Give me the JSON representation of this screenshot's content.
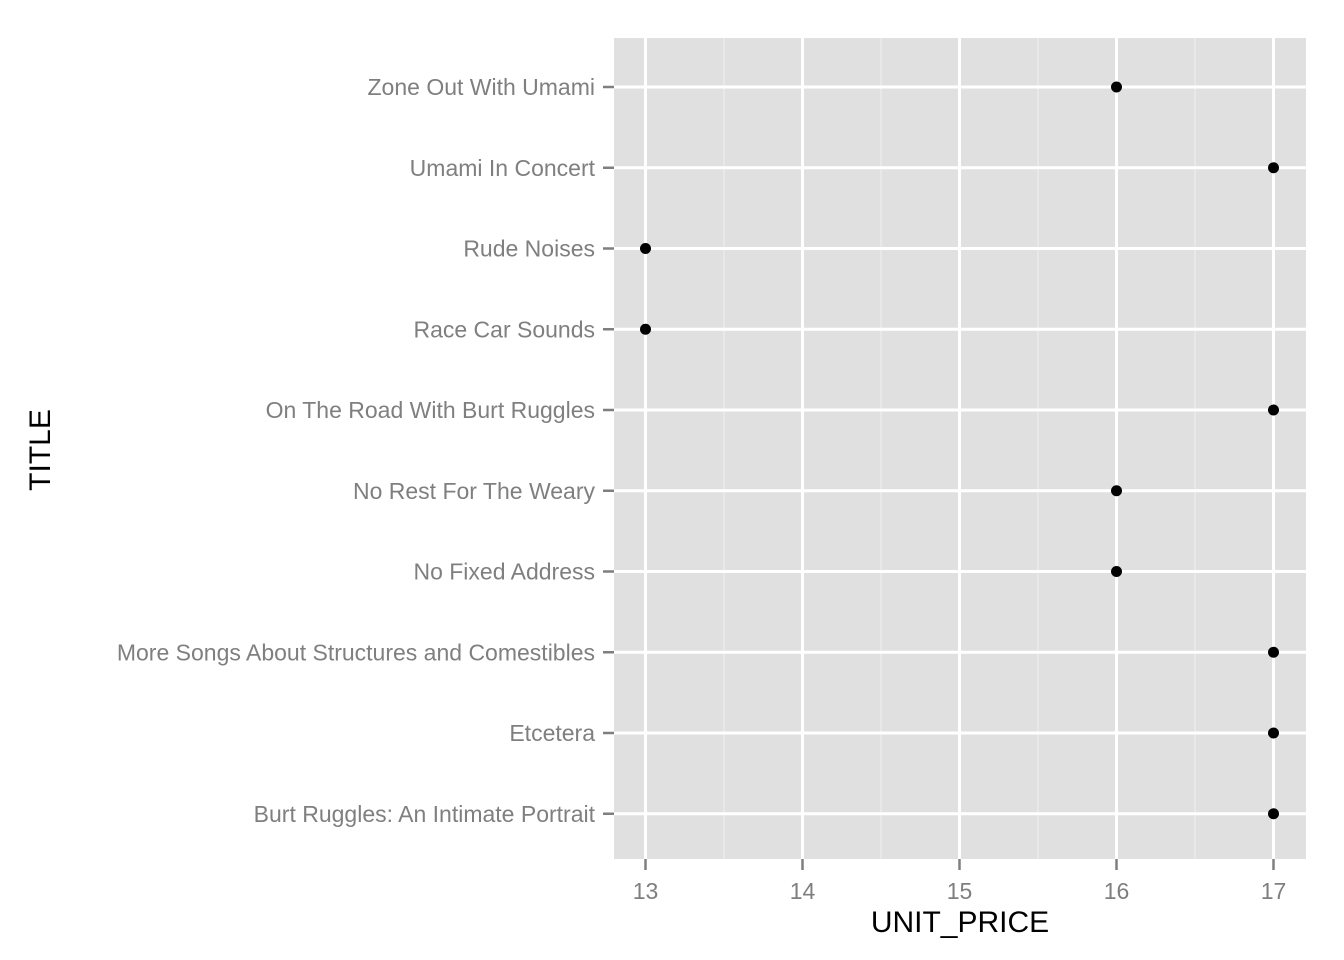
{
  "chart_data": {
    "type": "scatter",
    "xlabel": "UNIT_PRICE",
    "ylabel": "TITLE",
    "xlim": [
      12.8,
      17.2
    ],
    "x_ticks": [
      13,
      14,
      15,
      16,
      17
    ],
    "x_tick_labels": [
      "13",
      "14",
      "15",
      "16",
      "17"
    ],
    "grid": true,
    "legend": "none",
    "categories": [
      "Zone Out With Umami",
      "Umami In Concert",
      "Rude Noises",
      "Race Car Sounds",
      "On The Road With Burt Ruggles",
      "No Rest For The Weary",
      "No Fixed Address",
      "More Songs About Structures and Comestibles",
      "Etcetera",
      "Burt Ruggles: An Intimate Portrait"
    ],
    "values": [
      16,
      17,
      13,
      13,
      17,
      16,
      16,
      17,
      17,
      17
    ],
    "colors": {
      "panel": "#e0e0e0",
      "grid_major": "#ffffff",
      "grid_minor": "#ebebeb",
      "point": "#000000",
      "tick": "#7f7f7f"
    }
  }
}
